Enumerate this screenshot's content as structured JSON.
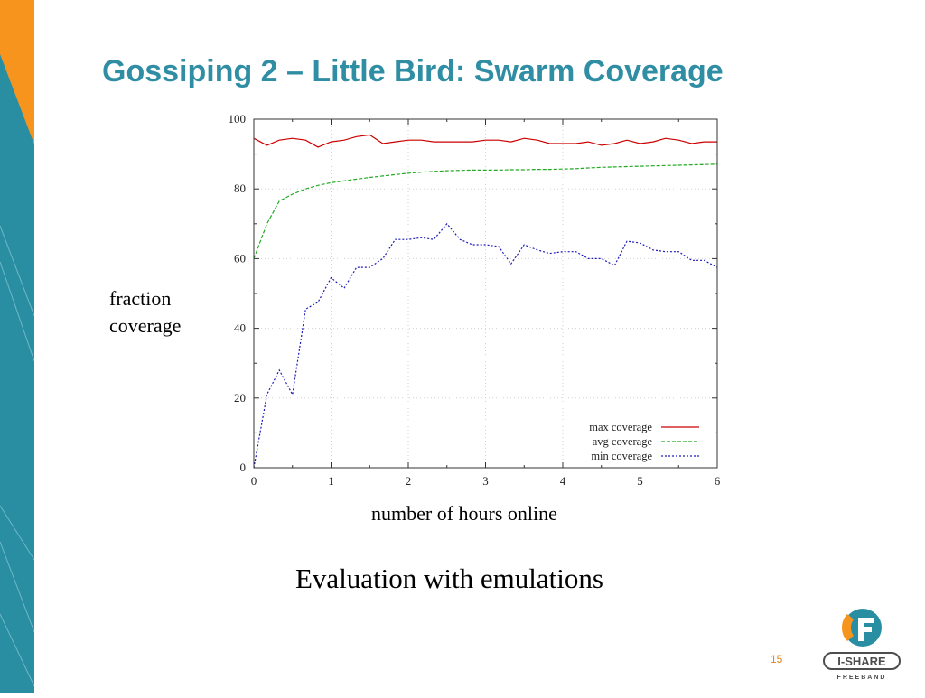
{
  "slide": {
    "title": "Gossiping 2 – Little Bird: Swarm Coverage",
    "ylabel_line1": "fraction",
    "ylabel_line2": "coverage",
    "xlabel": "number of hours online",
    "caption": "Evaluation with emulations",
    "page_number": "15",
    "logo": {
      "brand_text": "I-SHARE",
      "sub_text": "FREEBAND"
    },
    "colors": {
      "title": "#2f8ea3",
      "sidebar_teal": "#2a8ea3",
      "sidebar_orange": "#f7941d",
      "page_number": "#e8841a"
    }
  },
  "chart_data": {
    "type": "line",
    "xlim": [
      0,
      6
    ],
    "ylim": [
      0,
      100
    ],
    "x_ticks": [
      0,
      1,
      2,
      3,
      4,
      5,
      6
    ],
    "y_ticks": [
      0,
      20,
      40,
      60,
      80,
      100
    ],
    "grid": true,
    "legend_position": "bottom-right",
    "series": [
      {
        "name": "max coverage",
        "color": "#cc0000",
        "dash": "solid",
        "x": [
          0,
          0.17,
          0.33,
          0.5,
          0.67,
          0.83,
          1.0,
          1.17,
          1.33,
          1.5,
          1.67,
          1.83,
          2.0,
          2.17,
          2.33,
          2.5,
          2.67,
          2.83,
          3.0,
          3.17,
          3.33,
          3.5,
          3.67,
          3.83,
          4.0,
          4.17,
          4.33,
          4.5,
          4.67,
          4.83,
          5.0,
          5.17,
          5.33,
          5.5,
          5.67,
          5.83,
          6.0
        ],
        "y": [
          94.5,
          92.5,
          94,
          94.5,
          94,
          92,
          93.5,
          94,
          95,
          95.5,
          93,
          93.5,
          94,
          94,
          93.5,
          93.5,
          93.5,
          93.5,
          94,
          94,
          93.5,
          94.5,
          94,
          93,
          93,
          93,
          93.5,
          92.5,
          93,
          94,
          93,
          93.5,
          94.5,
          94,
          93,
          93.5,
          93.5
        ]
      },
      {
        "name": "avg coverage",
        "color": "#22aa22",
        "dash": "dashed",
        "x": [
          0,
          0.17,
          0.33,
          0.5,
          0.67,
          0.83,
          1.0,
          1.17,
          1.33,
          1.5,
          1.67,
          1.83,
          2.0,
          2.17,
          2.33,
          2.5,
          2.67,
          2.83,
          3.0,
          3.17,
          3.33,
          3.5,
          3.67,
          3.83,
          4.0,
          4.17,
          4.33,
          4.5,
          4.67,
          4.83,
          5.0,
          5.17,
          5.33,
          5.5,
          5.67,
          5.83,
          6.0
        ],
        "y": [
          60,
          70,
          76.5,
          78.5,
          80,
          81,
          81.8,
          82.3,
          82.8,
          83.3,
          83.7,
          84.1,
          84.5,
          84.8,
          85,
          85.2,
          85.3,
          85.4,
          85.4,
          85.4,
          85.5,
          85.5,
          85.6,
          85.6,
          85.7,
          85.8,
          86,
          86.2,
          86.3,
          86.4,
          86.5,
          86.6,
          86.7,
          86.8,
          86.9,
          87,
          87.1
        ]
      },
      {
        "name": "min coverage",
        "color": "#1a1ab8",
        "dash": "dotted",
        "x": [
          0,
          0.17,
          0.33,
          0.5,
          0.67,
          0.83,
          1.0,
          1.17,
          1.33,
          1.5,
          1.67,
          1.83,
          2.0,
          2.17,
          2.33,
          2.5,
          2.67,
          2.83,
          3.0,
          3.17,
          3.33,
          3.5,
          3.67,
          3.83,
          4.0,
          4.17,
          4.33,
          4.5,
          4.67,
          4.83,
          5.0,
          5.17,
          5.33,
          5.5,
          5.67,
          5.83,
          6.0
        ],
        "y": [
          0,
          21,
          28,
          21,
          45.5,
          47.5,
          54.5,
          51.5,
          57.5,
          57.5,
          60,
          65.5,
          65.5,
          66,
          65.5,
          70,
          65.5,
          64,
          64,
          63.5,
          58.5,
          64,
          62.5,
          61.5,
          62,
          62,
          60,
          60,
          58,
          65,
          64.5,
          62.5,
          62,
          62,
          59.5,
          59.5,
          57.5
        ]
      }
    ]
  }
}
